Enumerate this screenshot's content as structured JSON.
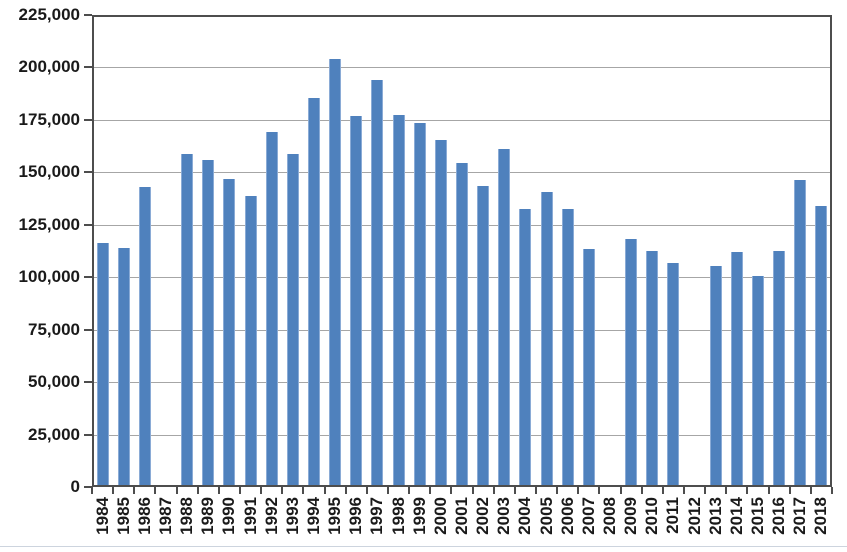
{
  "chart_data": {
    "type": "bar",
    "title": "",
    "xlabel": "",
    "ylabel": "",
    "legend": "none",
    "grid": true,
    "ylim": [
      0,
      225000
    ],
    "ytick_interval": 25000,
    "ytick_labels_top_to_bottom": [
      "225,000",
      "200,000",
      "175,000",
      "150,000",
      "125,000",
      "100,000",
      "75,000",
      "50,000",
      "25,000",
      "0"
    ],
    "categories": [
      "1984",
      "1985",
      "1986",
      "1987",
      "1988",
      "1989",
      "1990",
      "1991",
      "1992",
      "1993",
      "1994",
      "1995",
      "1996",
      "1997",
      "1998",
      "1999",
      "2000",
      "2001",
      "2002",
      "2003",
      "2004",
      "2005",
      "2006",
      "2007",
      "2008",
      "2009",
      "2010",
      "2011",
      "2012",
      "2013",
      "2014",
      "2015",
      "2016",
      "2017",
      "2018"
    ],
    "values": [
      116000,
      113500,
      142500,
      0,
      158500,
      155500,
      146500,
      138500,
      169000,
      158500,
      185500,
      204000,
      176500,
      194000,
      177000,
      173500,
      165000,
      154000,
      143000,
      161000,
      132000,
      140500,
      132000,
      113000,
      0,
      118000,
      112000,
      106500,
      0,
      105000,
      111500,
      100000,
      112000,
      146000,
      133500
    ],
    "missing_years": [
      "1987",
      "2008",
      "2012"
    ],
    "colors": {
      "bar_fill": "#4f81bd",
      "bar_edge": "#8aabd6",
      "gridline": "#a6a6a6",
      "plot_border": "#4d4d4d",
      "axis_text": "#1a1a1a",
      "background": "#ffffff",
      "bottom_rule": "#cdd4de"
    }
  }
}
